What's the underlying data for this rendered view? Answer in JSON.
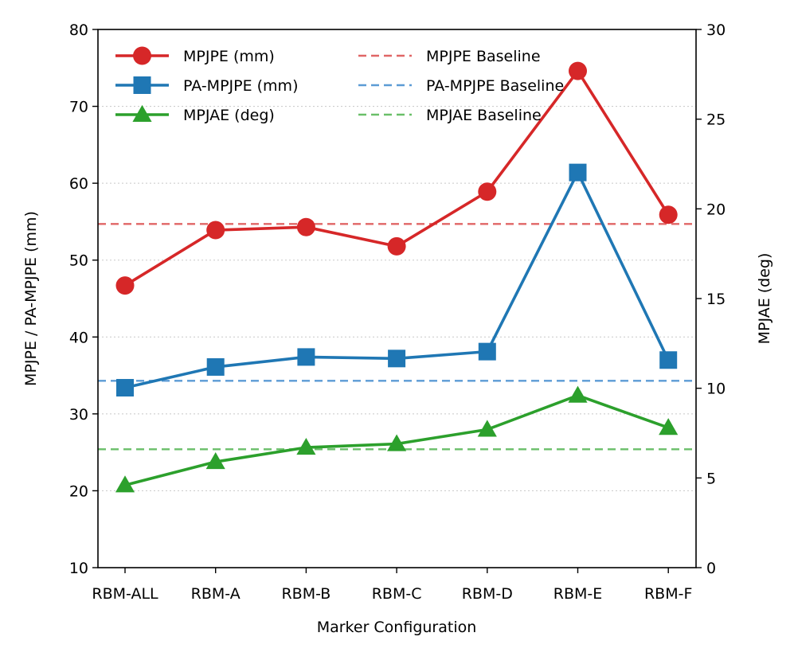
{
  "chart_data": {
    "type": "line",
    "xlabel": "Marker Configuration",
    "ylabel_left": "MPJPE / PA-MPJPE (mm)",
    "ylabel_right": "MPJAE (deg)",
    "ylim_left": [
      10,
      80
    ],
    "ylim_right": [
      0,
      30
    ],
    "yticks_left": [
      "10",
      "20",
      "30",
      "40",
      "50",
      "60",
      "70",
      "80"
    ],
    "yticks_right": [
      "0",
      "5",
      "10",
      "15",
      "20",
      "25",
      "30"
    ],
    "categories": [
      "RBM-ALL",
      "RBM-A",
      "RBM-B",
      "RBM-C",
      "RBM-D",
      "RBM-E",
      "RBM-F"
    ],
    "grid": "horizontal-dotted",
    "legend_position": "top-left",
    "series": [
      {
        "name": "MPJPE (mm)",
        "axis": "left",
        "marker": "circle",
        "color": "#d62728",
        "values": [
          46.7,
          53.9,
          54.3,
          51.8,
          58.9,
          74.6,
          55.9
        ]
      },
      {
        "name": "PA-MPJPE (mm)",
        "axis": "left",
        "marker": "square",
        "color": "#1f77b4",
        "values": [
          33.4,
          36.1,
          37.4,
          37.2,
          38.1,
          61.4,
          37.0
        ]
      },
      {
        "name": "MPJAE (deg)",
        "axis": "right",
        "marker": "triangle",
        "color": "#2ca02c",
        "values": [
          4.6,
          5.9,
          6.7,
          6.9,
          7.7,
          9.6,
          7.8
        ]
      }
    ],
    "baselines": [
      {
        "name": "MPJPE Baseline",
        "axis": "left",
        "value": 54.7,
        "color": "#e06666"
      },
      {
        "name": "PA-MPJPE Baseline",
        "axis": "left",
        "value": 34.3,
        "color": "#5b9bd5"
      },
      {
        "name": "MPJAE Baseline",
        "axis": "right",
        "value": 6.6,
        "color": "#6abf69"
      }
    ]
  }
}
